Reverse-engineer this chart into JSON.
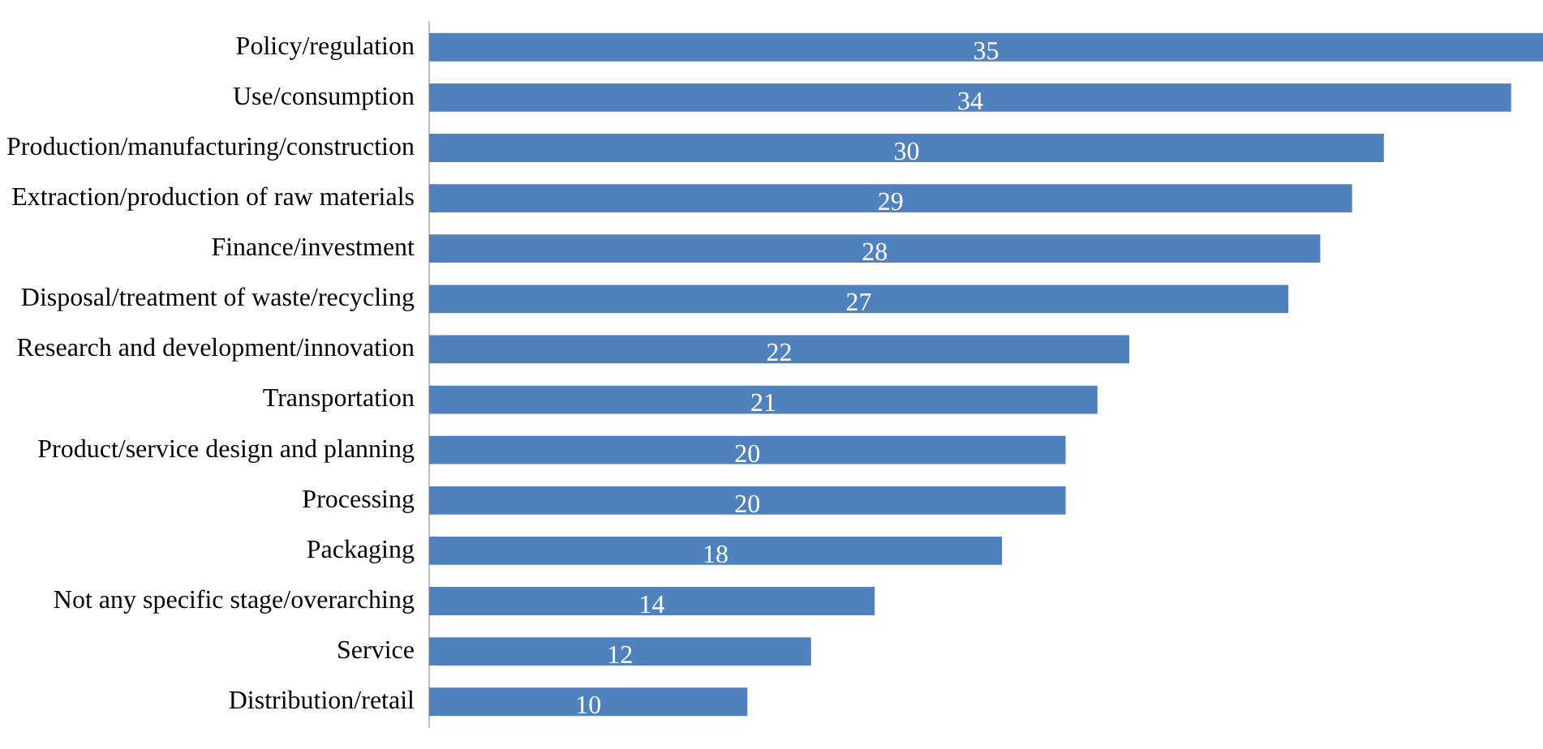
{
  "chart_data": {
    "type": "bar",
    "orientation": "horizontal",
    "categories": [
      "Policy/regulation",
      "Use/consumption",
      "Production/manufacturing/construction",
      "Extraction/production of raw materials",
      "Finance/investment",
      "Disposal/treatment of waste/recycling",
      "Research and development/innovation",
      "Transportation",
      "Product/service design and planning",
      "Processing",
      "Packaging",
      "Not any specific stage/overarching",
      "Service",
      "Distribution/retail"
    ],
    "values": [
      35,
      34,
      30,
      29,
      28,
      27,
      22,
      21,
      20,
      20,
      18,
      14,
      12,
      10
    ],
    "color": "#4f81bd",
    "xlim": [
      0,
      35
    ],
    "tick_labels": "y",
    "data_labels": true
  }
}
